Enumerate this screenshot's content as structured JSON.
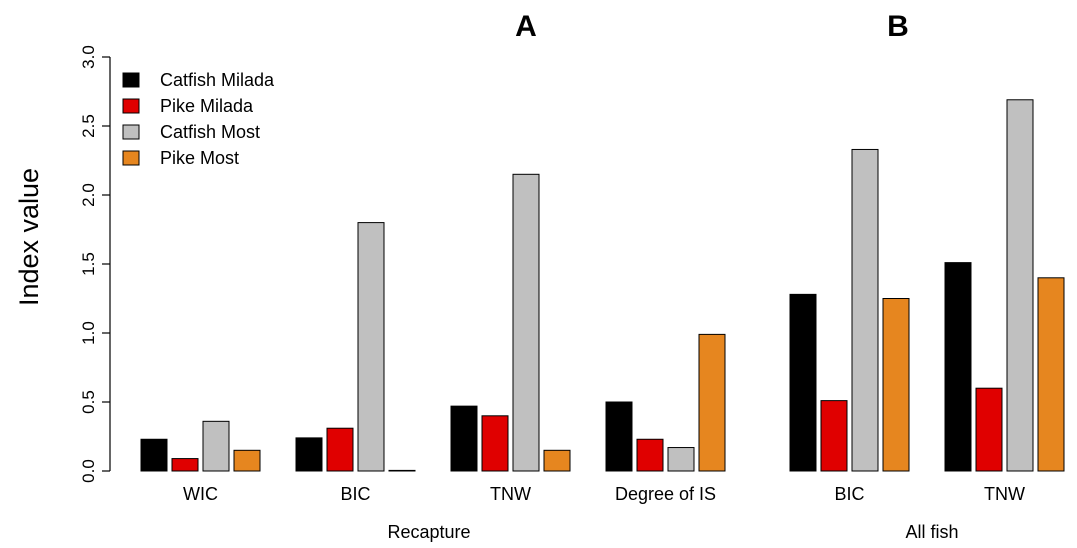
{
  "chart_data": {
    "type": "bar",
    "ylabel": "Index value",
    "ylim": [
      0,
      3.0
    ],
    "yticks": [
      0.0,
      0.5,
      1.0,
      1.5,
      2.0,
      2.5,
      3.0
    ],
    "ytick_labels": [
      "0.0",
      "0.5",
      "1.0",
      "1.5",
      "2.0",
      "2.5",
      "3.0"
    ],
    "grid": false,
    "legend_position": "top-left",
    "series": [
      {
        "name": "Catfish Milada",
        "color": "#000000"
      },
      {
        "name": "Pike Milada",
        "color": "#e00000"
      },
      {
        "name": "Catfish Most",
        "color": "#c0c0c0"
      },
      {
        "name": "Pike Most",
        "color": "#e6861f"
      }
    ],
    "panels": [
      {
        "label": "A",
        "group_label": "Recapture",
        "categories": [
          "WIC",
          "BIC",
          "TNW",
          "Degree of IS"
        ],
        "values": [
          [
            0.23,
            0.09,
            0.36,
            0.15
          ],
          [
            0.24,
            0.31,
            1.8,
            0.0
          ],
          [
            0.47,
            0.4,
            2.15,
            0.15
          ],
          [
            0.5,
            0.23,
            0.17,
            0.99
          ]
        ]
      },
      {
        "label": "B",
        "group_label": "All fish",
        "categories": [
          "BIC",
          "TNW"
        ],
        "values": [
          [
            1.28,
            0.51,
            2.33,
            1.25
          ],
          [
            1.51,
            0.6,
            2.69,
            1.4
          ]
        ]
      }
    ]
  }
}
